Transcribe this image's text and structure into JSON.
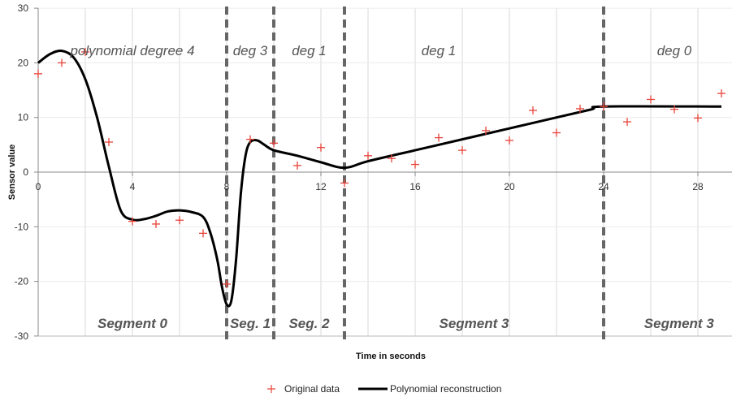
{
  "chart_data": {
    "type": "scatter",
    "xlabel": "Time in seconds",
    "ylabel": "Sensor value",
    "xlim": [
      0,
      30
    ],
    "ylim": [
      -30,
      30
    ],
    "x_ticks": [
      0,
      4,
      8,
      12,
      16,
      20,
      24,
      28
    ],
    "y_ticks": [
      -30,
      -20,
      -10,
      0,
      10,
      20,
      30
    ],
    "grid": "vertical",
    "legend_position": "bottom",
    "colors": {
      "points": "#e8433a",
      "line": "#000000",
      "dividers": "#666666"
    },
    "series": [
      {
        "name": "Original data",
        "kind": "points",
        "x": [
          0,
          1,
          2,
          3,
          4,
          5,
          6,
          7,
          8,
          9,
          10,
          11,
          12,
          13,
          14,
          15,
          16,
          17,
          18,
          19,
          20,
          21,
          22,
          23,
          24,
          25,
          26,
          27,
          28,
          29
        ],
        "y": [
          18,
          20,
          22,
          5.5,
          -9,
          -9.5,
          -8.8,
          -11.2,
          -20.5,
          6,
          5.3,
          1.2,
          4.5,
          -2,
          3,
          2.5,
          1.4,
          6.3,
          4,
          7.6,
          5.8,
          11.3,
          7.2,
          11.6,
          12,
          9.2,
          13.3,
          11.5,
          9.9,
          14.4
        ]
      },
      {
        "name": "Polynomial reconstruction",
        "kind": "line",
        "x": [
          0,
          0.5,
          1,
          1.5,
          2,
          2.5,
          3,
          3.5,
          4,
          4.5,
          5,
          5.5,
          6,
          6.5,
          7,
          7.3,
          7.6,
          7.8,
          8,
          8.2,
          8.4,
          8.6,
          8.8,
          9,
          9.3,
          9.6,
          10,
          11,
          12,
          13,
          14,
          16,
          18,
          20,
          22,
          23.5,
          24,
          29
        ],
        "y": [
          20,
          21.6,
          22.2,
          21,
          17,
          10,
          1,
          -7,
          -8.7,
          -8.6,
          -8,
          -7.2,
          -7,
          -7.3,
          -8.2,
          -11,
          -16,
          -21,
          -24.2,
          -23.5,
          -16,
          -4,
          3,
          5.5,
          5.8,
          5,
          4,
          3,
          1.8,
          0.8,
          2,
          4,
          6,
          8,
          10,
          11.5,
          12,
          12
        ]
      }
    ],
    "dividers": [
      8,
      10,
      13,
      24
    ],
    "annotations": [
      {
        "text": "polynomial degree 4",
        "x": 4
      },
      {
        "text": "deg 3",
        "x": 9
      },
      {
        "text": "deg 1",
        "x": 11.5
      },
      {
        "text": "deg 1",
        "x": 17
      },
      {
        "text": "deg 0",
        "x": 27
      }
    ],
    "segment_labels": [
      {
        "text": "Segment  0",
        "x": 4
      },
      {
        "text": "Seg. 1",
        "x": 9
      },
      {
        "text": "Seg. 2",
        "x": 11.5
      },
      {
        "text": "Segment 3",
        "x": 18.5
      },
      {
        "text": "Segment 3",
        "x": 27.2
      }
    ]
  }
}
